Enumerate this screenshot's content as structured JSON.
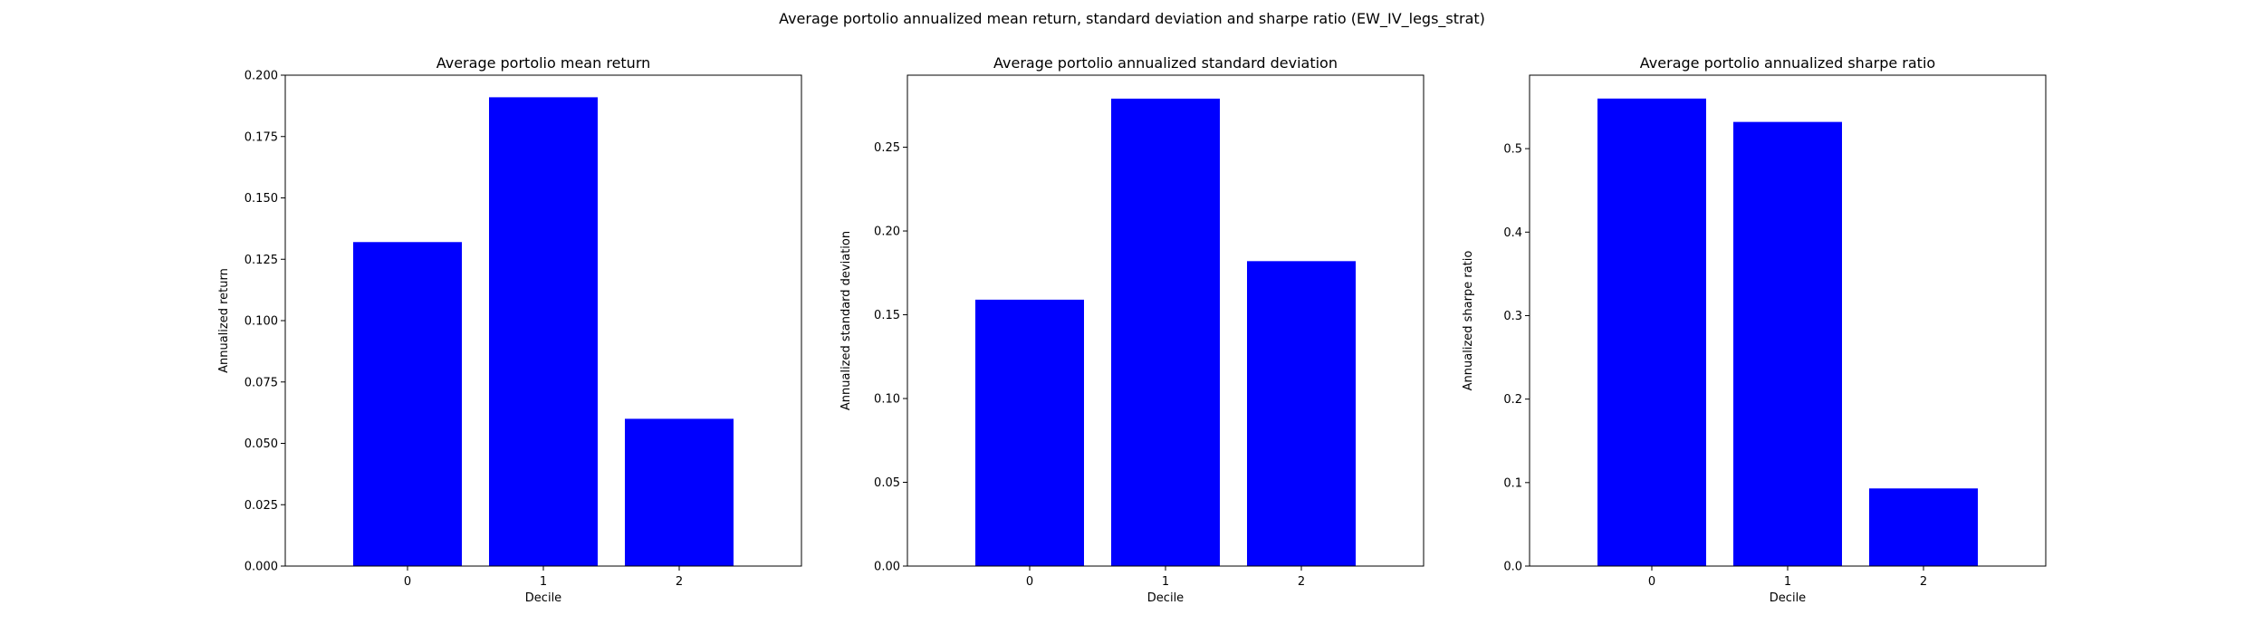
{
  "figure": {
    "suptitle": "Average portolio annualized mean return, standard deviation and sharpe ratio (EW_IV_legs_strat)"
  },
  "colors": {
    "bar": "#0000ff",
    "axes": "#000000",
    "background": "#ffffff"
  },
  "chart_data": [
    {
      "type": "bar",
      "title": "Average portolio mean return",
      "xlabel": "Decile",
      "ylabel": "Annualized return",
      "categories": [
        "0",
        "1",
        "2"
      ],
      "values": [
        0.132,
        0.191,
        0.06
      ],
      "ylim": [
        0,
        0.2
      ],
      "yticks": [
        "0.000",
        "0.025",
        "0.050",
        "0.075",
        "0.100",
        "0.125",
        "0.150",
        "0.175",
        "0.200"
      ],
      "grid": false,
      "legend": "none"
    },
    {
      "type": "bar",
      "title": "Average portolio annualized standard deviation",
      "xlabel": "Decile",
      "ylabel": "Annualized standard deviation",
      "categories": [
        "0",
        "1",
        "2"
      ],
      "values": [
        0.159,
        0.279,
        0.182
      ],
      "ylim": [
        0,
        0.293
      ],
      "yticks": [
        "0.00",
        "0.05",
        "0.10",
        "0.15",
        "0.20",
        "0.25"
      ],
      "grid": false,
      "legend": "none"
    },
    {
      "type": "bar",
      "title": "Average portolio annualized sharpe ratio",
      "xlabel": "Decile",
      "ylabel": "Annualized sharpe ratio",
      "categories": [
        "0",
        "1",
        "2"
      ],
      "values": [
        0.56,
        0.532,
        0.093
      ],
      "ylim": [
        0,
        0.588
      ],
      "yticks": [
        "0.0",
        "0.1",
        "0.2",
        "0.3",
        "0.4",
        "0.5"
      ],
      "grid": false,
      "legend": "none"
    }
  ]
}
